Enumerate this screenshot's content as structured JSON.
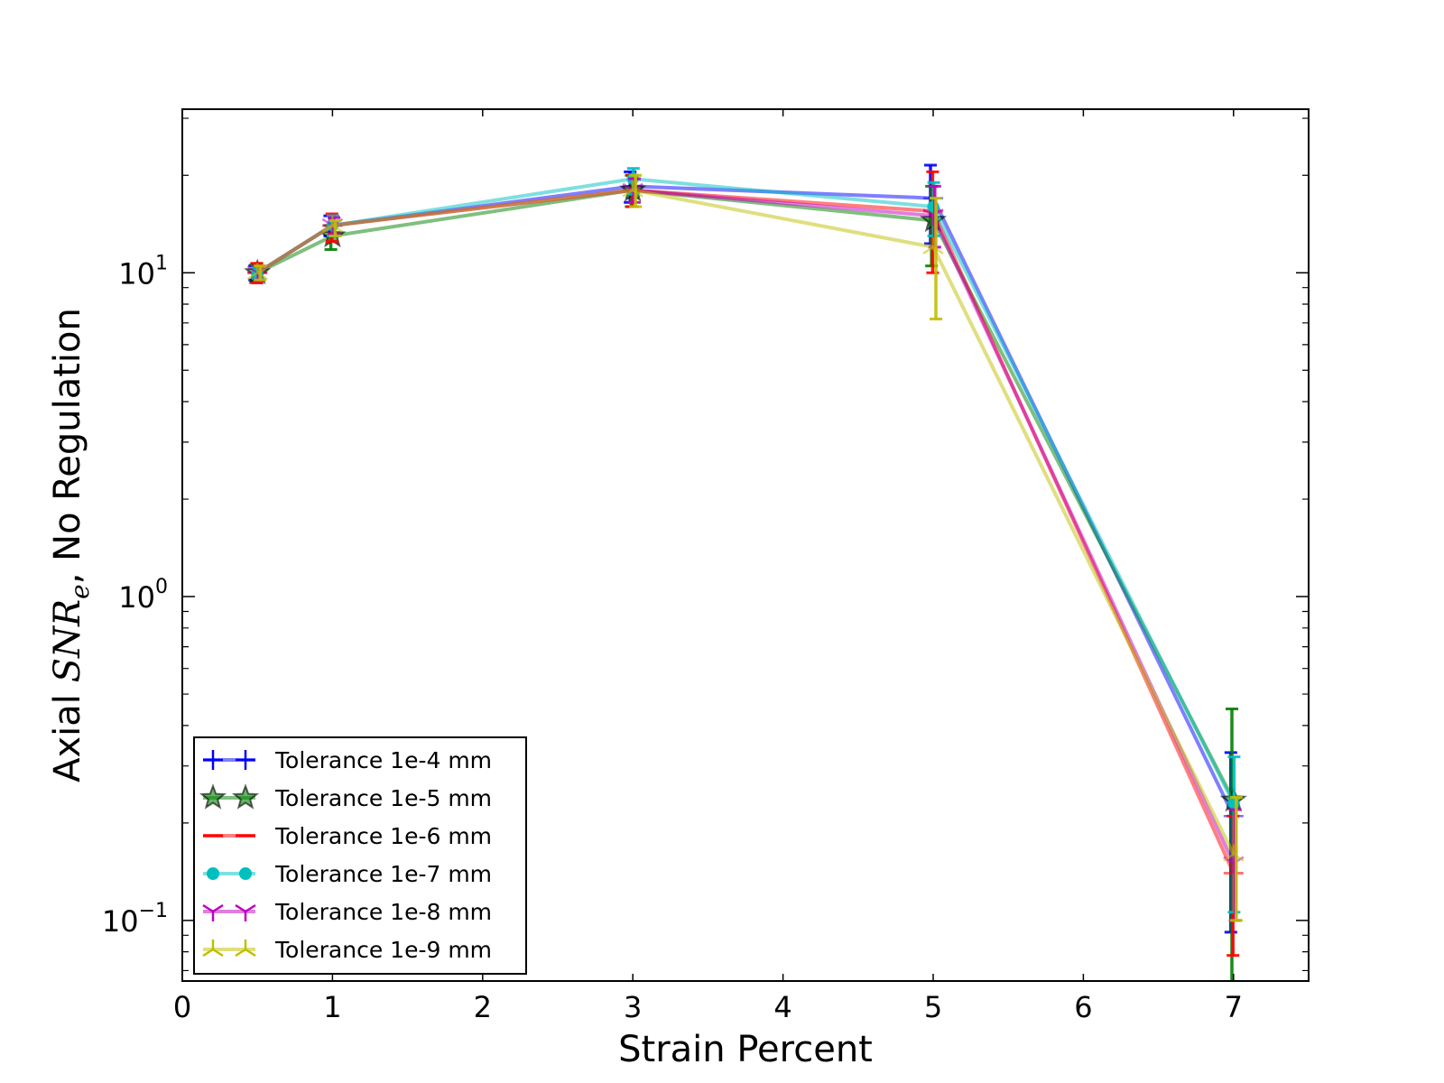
{
  "chart_data": {
    "type": "line",
    "xlabel": "Strain Percent",
    "ylabel": {
      "prefix": "Axial ",
      "math_main": "SNR",
      "math_sub": "e",
      "suffix": ", No Regulation"
    },
    "x_scale": "linear",
    "y_scale": "log",
    "xlim": [
      0,
      7.5
    ],
    "ylim": [
      0.065,
      32
    ],
    "x_ticks": [
      "0",
      "1",
      "2",
      "3",
      "4",
      "5",
      "6",
      "7"
    ],
    "y_ticks": [
      {
        "value": 0.1,
        "base": "10",
        "exp": "−1"
      },
      {
        "value": 1,
        "base": "10",
        "exp": "0"
      },
      {
        "value": 10,
        "base": "10",
        "exp": "1"
      }
    ],
    "legend_position": "lower-left",
    "x": [
      0.5,
      1,
      3,
      5,
      7
    ],
    "series": [
      {
        "name": "Tolerance 1e-4 mm",
        "color": "#0000ff",
        "marker": "plus",
        "values": [
          10.0,
          14.0,
          18.5,
          17.0,
          0.21
        ],
        "err_low": [
          9.5,
          13.0,
          16.5,
          12.3,
          0.092
        ],
        "err_high": [
          10.5,
          15.0,
          20.5,
          21.5,
          0.33
        ]
      },
      {
        "name": "Tolerance 1e-5 mm",
        "color": "#008000",
        "marker": "star",
        "values": [
          10.0,
          13.0,
          18.0,
          14.5,
          0.235
        ],
        "err_low": [
          9.4,
          11.8,
          16.0,
          10.5,
          0.04
        ],
        "err_high": [
          10.6,
          14.0,
          20.0,
          18.5,
          0.45
        ]
      },
      {
        "name": "Tolerance 1e-6 mm",
        "color": "#ff0000",
        "marker": "hline",
        "values": [
          10.0,
          14.0,
          18.0,
          15.5,
          0.14
        ],
        "err_low": [
          9.3,
          12.5,
          16.0,
          10.0,
          0.078
        ],
        "err_high": [
          10.7,
          15.2,
          20.0,
          20.5,
          0.21
        ]
      },
      {
        "name": "Tolerance 1e-7 mm",
        "color": "#00bfbf",
        "marker": "circle",
        "values": [
          10.0,
          14.0,
          19.5,
          16.0,
          0.23
        ],
        "err_low": [
          9.6,
          13.0,
          17.5,
          13.0,
          0.106
        ],
        "err_high": [
          10.4,
          15.0,
          21.0,
          19.0,
          0.32
        ]
      },
      {
        "name": "Tolerance 1e-8 mm",
        "color": "#bf00bf",
        "marker": "tri_down",
        "values": [
          10.0,
          14.0,
          18.0,
          15.0,
          0.15
        ],
        "err_low": [
          9.5,
          13.2,
          16.5,
          12.0,
          0.1
        ],
        "err_high": [
          10.5,
          14.8,
          19.5,
          18.5,
          0.22
        ]
      },
      {
        "name": "Tolerance 1e-9 mm",
        "color": "#bfbf00",
        "marker": "tri_up",
        "values": [
          10.0,
          14.0,
          18.0,
          12.0,
          0.16
        ],
        "err_low": [
          9.5,
          13.0,
          16.0,
          7.2,
          0.1
        ],
        "err_high": [
          10.5,
          14.5,
          20.0,
          17.0,
          0.24
        ]
      }
    ]
  }
}
